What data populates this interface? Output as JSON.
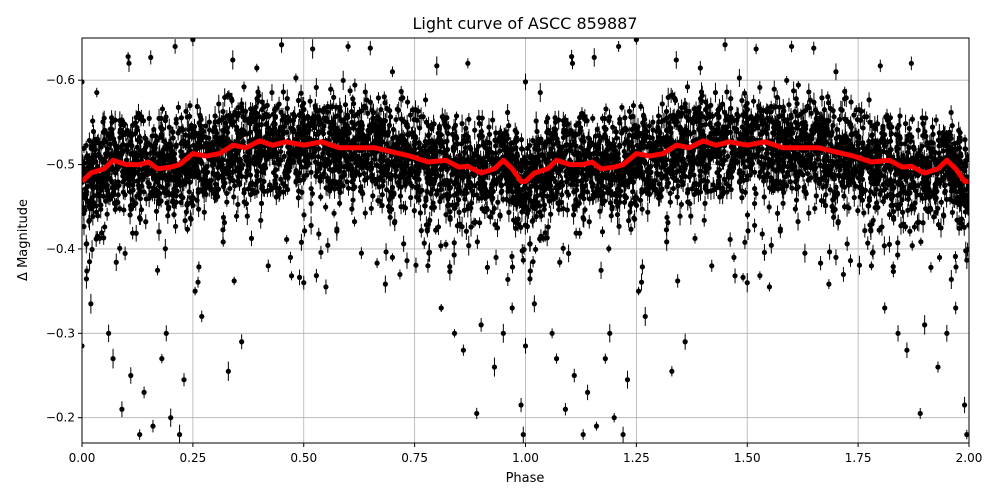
{
  "chart_data": {
    "type": "scatter",
    "title": "Light curve of ASCC 859887",
    "xlabel": "Phase",
    "ylabel": "Δ Magnitude",
    "xlim": [
      0,
      2
    ],
    "ylim": [
      -0.65,
      -0.17
    ],
    "y_inverted": true,
    "grid": true,
    "xticks": [
      "0.00",
      "0.25",
      "0.50",
      "0.75",
      "1.00",
      "1.25",
      "1.50",
      "1.75",
      "2.00"
    ],
    "xtick_values": [
      0,
      0.25,
      0.5,
      0.75,
      1.0,
      1.25,
      1.5,
      1.75,
      2.0
    ],
    "yticks": [
      "−0.6",
      "−0.5",
      "−0.4",
      "−0.3",
      "−0.2"
    ],
    "ytick_values": [
      -0.6,
      -0.5,
      -0.4,
      -0.3,
      -0.2
    ],
    "series": [
      {
        "kind": "scatter-errorbars",
        "color": "#000000",
        "phase_folded_repeat": true,
        "sample_points": [
          [
            0.104,
            -0.628
          ],
          [
            0.106,
            -0.62
          ],
          [
            0.155,
            -0.627
          ],
          [
            0.21,
            -0.64
          ],
          [
            0.25,
            -0.648
          ],
          [
            0.34,
            -0.624
          ],
          [
            0.45,
            -0.642
          ],
          [
            0.52,
            -0.637
          ],
          [
            0.6,
            -0.64
          ],
          [
            0.65,
            -0.638
          ],
          [
            0.7,
            -0.61
          ],
          [
            0.8,
            -0.617
          ],
          [
            0.87,
            -0.62
          ],
          [
            0.05,
            -0.555
          ],
          [
            0.0,
            -0.598
          ],
          [
            0.0,
            -0.285
          ],
          [
            0.02,
            -0.335
          ],
          [
            0.06,
            -0.3
          ],
          [
            0.07,
            -0.27
          ],
          [
            0.09,
            -0.21
          ],
          [
            0.11,
            -0.25
          ],
          [
            0.13,
            -0.18
          ],
          [
            0.14,
            -0.23
          ],
          [
            0.16,
            -0.19
          ],
          [
            0.18,
            -0.27
          ],
          [
            0.19,
            -0.3
          ],
          [
            0.2,
            -0.2
          ],
          [
            0.22,
            -0.18
          ],
          [
            0.23,
            -0.245
          ],
          [
            0.255,
            -0.35
          ],
          [
            0.27,
            -0.32
          ],
          [
            0.33,
            -0.255
          ],
          [
            0.36,
            -0.29
          ],
          [
            0.42,
            -0.38
          ],
          [
            0.47,
            -0.39
          ],
          [
            0.5,
            -0.36
          ],
          [
            0.55,
            -0.355
          ],
          [
            0.63,
            -0.395
          ],
          [
            0.7,
            -0.39
          ],
          [
            0.78,
            -0.38
          ],
          [
            0.81,
            -0.33
          ],
          [
            0.84,
            -0.3
          ],
          [
            0.86,
            -0.28
          ],
          [
            0.89,
            -0.205
          ],
          [
            0.9,
            -0.31
          ],
          [
            0.93,
            -0.26
          ],
          [
            0.95,
            -0.3
          ],
          [
            0.97,
            -0.33
          ],
          [
            0.99,
            -0.215
          ],
          [
            0.995,
            -0.18
          ]
        ]
      },
      {
        "kind": "binned-mean-line",
        "color": "#ff0000",
        "phase_folded_repeat": true,
        "x": [
          0.0,
          0.02,
          0.05,
          0.07,
          0.1,
          0.13,
          0.15,
          0.17,
          0.2,
          0.22,
          0.25,
          0.28,
          0.31,
          0.34,
          0.37,
          0.4,
          0.43,
          0.46,
          0.5,
          0.54,
          0.58,
          0.62,
          0.66,
          0.7,
          0.74,
          0.78,
          0.82,
          0.85,
          0.87,
          0.9,
          0.93,
          0.95,
          0.97,
          0.99,
          1.0
        ],
        "y": [
          -0.48,
          -0.49,
          -0.495,
          -0.505,
          -0.5,
          -0.5,
          -0.503,
          -0.495,
          -0.497,
          -0.5,
          -0.513,
          -0.51,
          -0.513,
          -0.523,
          -0.52,
          -0.528,
          -0.523,
          -0.527,
          -0.523,
          -0.527,
          -0.52,
          -0.52,
          -0.52,
          -0.515,
          -0.51,
          -0.503,
          -0.505,
          -0.497,
          -0.498,
          -0.49,
          -0.495,
          -0.505,
          -0.495,
          -0.48,
          -0.48
        ]
      }
    ]
  }
}
